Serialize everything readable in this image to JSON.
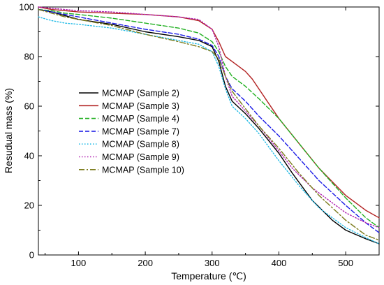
{
  "chart_data": {
    "type": "line",
    "xlabel": "Temperature (℃)",
    "ylabel": "Resudual mass (%)",
    "xlim": [
      40,
      550
    ],
    "ylim": [
      0,
      100
    ],
    "xticks": [
      100,
      200,
      300,
      400,
      500
    ],
    "yticks": [
      0,
      20,
      40,
      60,
      80,
      100
    ],
    "legend_position": "center-left",
    "series": [
      {
        "name": "MCMAP (Sample 2)",
        "color": "#000000",
        "dash": "solid",
        "x": [
          40,
          60,
          80,
          100,
          150,
          200,
          250,
          280,
          300,
          310,
          320,
          330,
          350,
          370,
          400,
          420,
          450,
          480,
          500,
          530,
          550
        ],
        "y": [
          99,
          98,
          96.5,
          95,
          93,
          90,
          88,
          86.5,
          84,
          78,
          68,
          62,
          57,
          51,
          41,
          33,
          22,
          14,
          10,
          6.5,
          4.5
        ]
      },
      {
        "name": "MCMAP (Sample 3)",
        "color": "#b22222",
        "dash": "solid",
        "x": [
          40,
          60,
          80,
          100,
          150,
          200,
          250,
          280,
          300,
          310,
          320,
          330,
          340,
          350,
          360,
          380,
          400,
          430,
          460,
          500,
          530,
          550
        ],
        "y": [
          100,
          99,
          98.5,
          98,
          97.5,
          97,
          96,
          94.5,
          91,
          86,
          80,
          78,
          76,
          74,
          71,
          63,
          55,
          45,
          35,
          24,
          18,
          15
        ]
      },
      {
        "name": "MCMAP (Sample 4)",
        "color": "#22b022",
        "dash": "dash",
        "x": [
          40,
          60,
          80,
          100,
          150,
          200,
          250,
          280,
          300,
          310,
          320,
          330,
          350,
          370,
          400,
          430,
          460,
          500,
          530,
          550
        ],
        "y": [
          99,
          98.5,
          97.5,
          97,
          95.5,
          93.5,
          91.5,
          89.5,
          86,
          82,
          76,
          72,
          68,
          63,
          55,
          45,
          35,
          23,
          15,
          11
        ]
      },
      {
        "name": "MCMAP (Sample 7)",
        "color": "#1a1ae6",
        "dash": "dash",
        "x": [
          40,
          60,
          80,
          100,
          150,
          200,
          250,
          280,
          300,
          310,
          320,
          330,
          350,
          370,
          400,
          430,
          460,
          500,
          530,
          550
        ],
        "y": [
          99,
          98,
          97,
          96,
          93.5,
          91,
          89,
          87,
          84.5,
          80,
          72,
          67,
          62,
          56,
          48,
          39,
          30,
          20,
          13,
          9
        ]
      },
      {
        "name": "MCMAP (Sample 8)",
        "color": "#22bbe6",
        "dash": "dot",
        "x": [
          40,
          60,
          80,
          100,
          150,
          200,
          250,
          280,
          300,
          310,
          320,
          330,
          350,
          370,
          400,
          430,
          460,
          500,
          530,
          550
        ],
        "y": [
          96,
          94.5,
          93.5,
          93,
          91.5,
          89,
          86.5,
          85,
          82,
          76,
          67,
          60,
          55,
          49,
          38,
          28,
          19,
          11,
          7,
          4.5
        ]
      },
      {
        "name": "MCMAP (Sample 9)",
        "color": "#b020b0",
        "dash": "dot",
        "x": [
          40,
          60,
          80,
          100,
          150,
          200,
          250,
          280,
          300,
          310,
          320,
          330,
          350,
          370,
          400,
          420,
          450,
          480,
          500,
          530,
          550
        ],
        "y": [
          100,
          99.5,
          99,
          98.5,
          98,
          97,
          96,
          95,
          91,
          84,
          72,
          64,
          58,
          52,
          42,
          35,
          27,
          21,
          17,
          13,
          11
        ]
      },
      {
        "name": "MCMAP (Sample 10)",
        "color": "#7a7a1a",
        "dash": "dashdot",
        "x": [
          40,
          60,
          80,
          100,
          150,
          200,
          250,
          280,
          300,
          310,
          320,
          330,
          350,
          370,
          400,
          430,
          460,
          500,
          530,
          550
        ],
        "y": [
          99,
          97.5,
          96,
          95,
          92.5,
          89,
          86,
          84,
          82,
          79,
          72,
          66,
          59,
          52,
          43,
          33,
          24,
          14,
          8,
          6
        ]
      }
    ]
  }
}
